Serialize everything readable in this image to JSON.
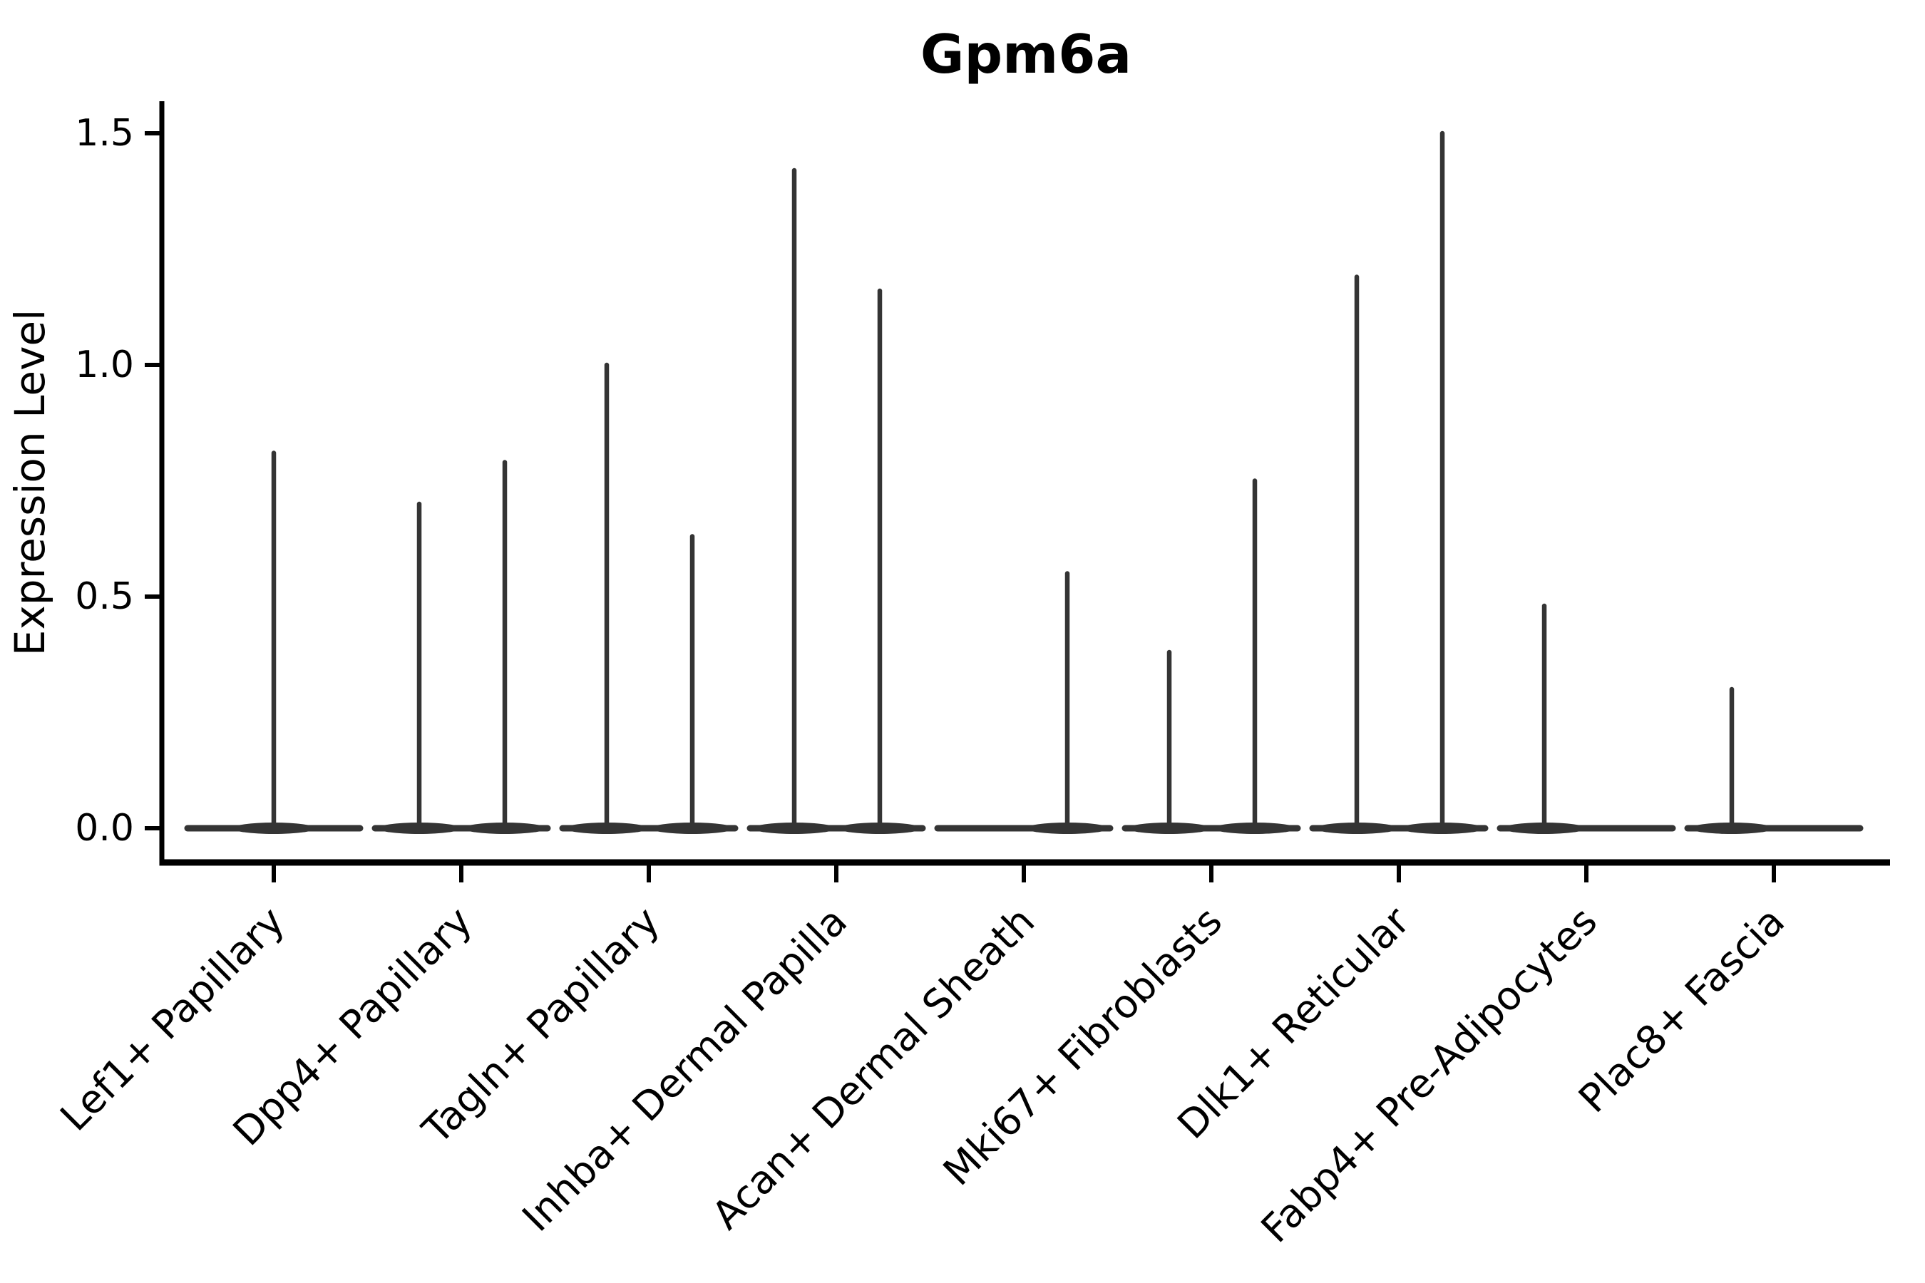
{
  "chart_data": {
    "type": "violin",
    "title": "Gpm6a",
    "ylabel": "Expression Level",
    "xlabel": "",
    "ylim": [
      -0.075,
      1.57
    ],
    "yticks": [
      "0.0",
      "0.5",
      "1.0",
      "1.5"
    ],
    "ytick_values": [
      0.0,
      0.5,
      1.0,
      1.5
    ],
    "grid": false,
    "legend": "none",
    "ink_color": "#343434",
    "axis_color": "#000000",
    "categories": [
      "Lef1+ Papillary",
      "Dpp4+ Papillary",
      "Tagln+ Papillary",
      "Inhba+ Dermal Papilla",
      "Acan+ Dermal Sheath",
      "Mki67+ Fibroblasts",
      "Dlk1+ Reticular",
      "Fabp4+ Pre-Adipocytes",
      "Plac8+ Fascia"
    ],
    "violins": [
      {
        "ci": 0,
        "category": "Lef1+ Papillary",
        "slot": "center",
        "max": 0.81,
        "baseline": 0.0
      },
      {
        "ci": 1,
        "category": "Dpp4+ Papillary",
        "slot": "left",
        "max": 0.7,
        "baseline": 0.0
      },
      {
        "ci": 1,
        "category": "Dpp4+ Papillary",
        "slot": "right",
        "max": 0.79,
        "baseline": 0.0
      },
      {
        "ci": 2,
        "category": "Tagln+ Papillary",
        "slot": "left",
        "max": 1.0,
        "baseline": 0.0
      },
      {
        "ci": 2,
        "category": "Tagln+ Papillary",
        "slot": "right",
        "max": 0.63,
        "baseline": 0.0
      },
      {
        "ci": 3,
        "category": "Inhba+ Dermal Papilla",
        "slot": "left",
        "max": 1.42,
        "baseline": 0.0
      },
      {
        "ci": 3,
        "category": "Inhba+ Dermal Papilla",
        "slot": "right",
        "max": 1.16,
        "baseline": 0.0
      },
      {
        "ci": 4,
        "category": "Acan+ Dermal Sheath",
        "slot": "right",
        "max": 0.55,
        "baseline": 0.0
      },
      {
        "ci": 5,
        "category": "Mki67+ Fibroblasts",
        "slot": "left",
        "max": 0.38,
        "baseline": 0.0
      },
      {
        "ci": 5,
        "category": "Mki67+ Fibroblasts",
        "slot": "right",
        "max": 0.75,
        "baseline": 0.0
      },
      {
        "ci": 6,
        "category": "Dlk1+ Reticular",
        "slot": "left",
        "max": 1.19,
        "baseline": 0.0
      },
      {
        "ci": 6,
        "category": "Dlk1+ Reticular",
        "slot": "right",
        "max": 1.5,
        "baseline": 0.0
      },
      {
        "ci": 7,
        "category": "Fabp4+ Pre-Adipocytes",
        "slot": "left",
        "max": 0.48,
        "baseline": 0.0
      },
      {
        "ci": 8,
        "category": "Plac8+ Fascia",
        "slot": "left",
        "max": 0.3,
        "baseline": 0.0
      }
    ]
  }
}
